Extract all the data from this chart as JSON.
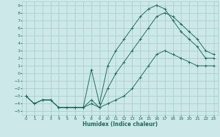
{
  "xlabel": "Humidex (Indice chaleur)",
  "bg_color": "#cce8e8",
  "grid_color": "#aacccc",
  "line_color": "#1a6b5a",
  "xlim": [
    -0.5,
    23.5
  ],
  "ylim": [
    -5.5,
    9.5
  ],
  "xticks": [
    0,
    1,
    2,
    3,
    4,
    5,
    6,
    7,
    8,
    9,
    10,
    11,
    12,
    13,
    14,
    15,
    16,
    17,
    18,
    19,
    20,
    21,
    22,
    23
  ],
  "yticks": [
    -5,
    -4,
    -3,
    -2,
    -1,
    0,
    1,
    2,
    3,
    4,
    5,
    6,
    7,
    8,
    9
  ],
  "curve1_x": [
    0,
    1,
    2,
    3,
    4,
    5,
    6,
    7,
    8,
    9,
    10,
    11,
    12,
    13,
    14,
    15,
    16,
    17,
    18,
    19,
    20,
    21,
    22,
    23
  ],
  "curve1_y": [
    -3.0,
    -4.0,
    -3.5,
    -3.5,
    -4.5,
    -4.5,
    -4.5,
    -4.5,
    -4.0,
    -4.5,
    -4.0,
    -3.5,
    -3.0,
    -2.0,
    -0.5,
    1.0,
    2.5,
    3.0,
    2.5,
    2.0,
    1.5,
    1.0,
    1.0,
    1.0
  ],
  "curve2_x": [
    0,
    1,
    2,
    3,
    4,
    5,
    6,
    7,
    8,
    9,
    10,
    11,
    12,
    13,
    14,
    15,
    16,
    17,
    18,
    19,
    20,
    21,
    22,
    23
  ],
  "curve2_y": [
    -3.0,
    -4.0,
    -3.5,
    -3.5,
    -4.5,
    -4.5,
    -4.5,
    -4.5,
    0.5,
    -4.0,
    1.0,
    3.0,
    4.5,
    6.0,
    7.5,
    8.5,
    9.0,
    8.5,
    7.0,
    5.5,
    4.5,
    3.5,
    2.0,
    2.0
  ],
  "curve3_x": [
    0,
    1,
    2,
    3,
    4,
    5,
    6,
    7,
    8,
    9,
    10,
    11,
    12,
    13,
    14,
    15,
    16,
    17,
    18,
    19,
    20,
    21,
    22,
    23
  ],
  "curve3_y": [
    -3.0,
    -4.0,
    -3.5,
    -3.5,
    -4.5,
    -4.5,
    -4.5,
    -4.5,
    -3.5,
    -4.5,
    -2.0,
    0.0,
    1.5,
    3.0,
    4.5,
    6.0,
    7.5,
    8.0,
    7.5,
    6.5,
    5.5,
    4.5,
    3.0,
    2.5
  ]
}
